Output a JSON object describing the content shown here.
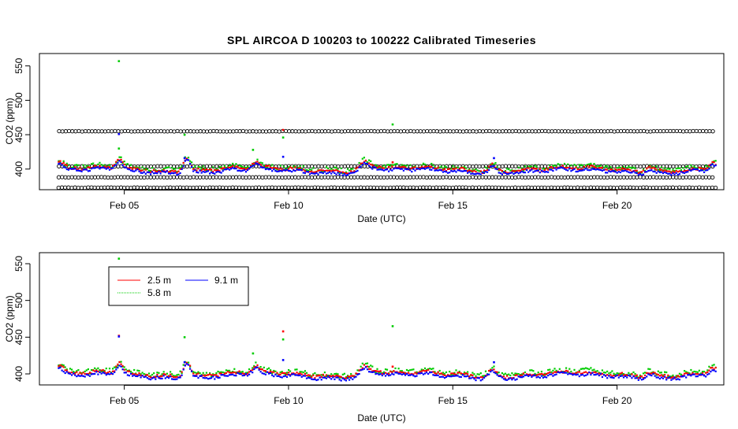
{
  "chart_data": [
    {
      "type": "scatter",
      "title": "SPL   AIRCOA  D   100203  to  100222   Calibrated Timeseries",
      "xlabel": "Date (UTC)",
      "ylabel": "CO2 (ppm)",
      "x_ticks": [
        "Feb 05",
        "Feb 10",
        "Feb 15",
        "Feb 20"
      ],
      "y_ticks": [
        "400",
        "450",
        "500",
        "550"
      ],
      "xlim": [
        "2010-02-02T10:00",
        "2010-02-23T06:00"
      ],
      "ylim": [
        370,
        568
      ],
      "grid": false,
      "colors": {
        "2.5 m": "#ff0000",
        "5.8 m": "#00cc00",
        "9.1 m": "#0000ff",
        "reference": "#000000"
      },
      "reference_levels": [
        373,
        388,
        404,
        455
      ],
      "series": [
        {
          "name": "2.5 m",
          "color": "#ff0000",
          "points": [
            [
              "2010-02-09T20:00",
              457
            ],
            [
              "2010-02-04T20:00",
              451
            ],
            [
              "2010-02-13T04:00",
              410
            ]
          ]
        },
        {
          "name": "5.8 m",
          "color": "#00cc00",
          "points": [
            [
              "2010-02-04T20:00",
              557
            ],
            [
              "2010-02-13T04:00",
              465
            ],
            [
              "2010-02-06T20:00",
              450
            ],
            [
              "2010-02-09T20:00",
              446
            ],
            [
              "2010-02-04T20:00",
              430
            ],
            [
              "2010-02-08T22:00",
              428
            ]
          ]
        },
        {
          "name": "9.1 m",
          "color": "#0000ff",
          "points": [
            [
              "2010-02-04T20:00",
              451
            ],
            [
              "2010-02-09T20:00",
              418
            ],
            [
              "2010-02-06T20:00",
              416
            ],
            [
              "2010-02-16T06:00",
              416
            ]
          ]
        }
      ]
    },
    {
      "type": "scatter",
      "xlabel": "Date (UTC)",
      "ylabel": "CO2 (ppm)",
      "x_ticks": [
        "Feb 05",
        "Feb 10",
        "Feb 15",
        "Feb 20"
      ],
      "y_ticks": [
        "400",
        "450",
        "500",
        "550"
      ],
      "xlim": [
        "2010-02-02T10:00",
        "2010-02-23T06:00"
      ],
      "ylim": [
        385,
        565
      ],
      "grid": false,
      "legend": {
        "placement": "top-left",
        "entries": [
          {
            "label": "2.5 m",
            "color": "#ff0000"
          },
          {
            "label": "9.1 m",
            "color": "#0000ff"
          },
          {
            "label": "5.8 m",
            "color": "#00cc00"
          }
        ]
      },
      "series": [
        {
          "name": "2.5 m",
          "color": "#ff0000",
          "points": [
            [
              "2010-02-09T20:00",
              458
            ],
            [
              "2010-02-04T20:00",
              452
            ],
            [
              "2010-02-13T04:00",
              410
            ]
          ]
        },
        {
          "name": "5.8 m",
          "color": "#00cc00",
          "points": [
            [
              "2010-02-04T20:00",
              557
            ],
            [
              "2010-02-13T04:00",
              465
            ],
            [
              "2010-02-06T20:00",
              450
            ],
            [
              "2010-02-09T20:00",
              447
            ],
            [
              "2010-02-08T22:00",
              428
            ]
          ]
        },
        {
          "name": "9.1 m",
          "color": "#0000ff",
          "points": [
            [
              "2010-02-04T20:00",
              451
            ],
            [
              "2010-02-09T20:00",
              419
            ],
            [
              "2010-02-06T20:00",
              416
            ],
            [
              "2010-02-16T06:00",
              416
            ]
          ]
        }
      ]
    }
  ]
}
